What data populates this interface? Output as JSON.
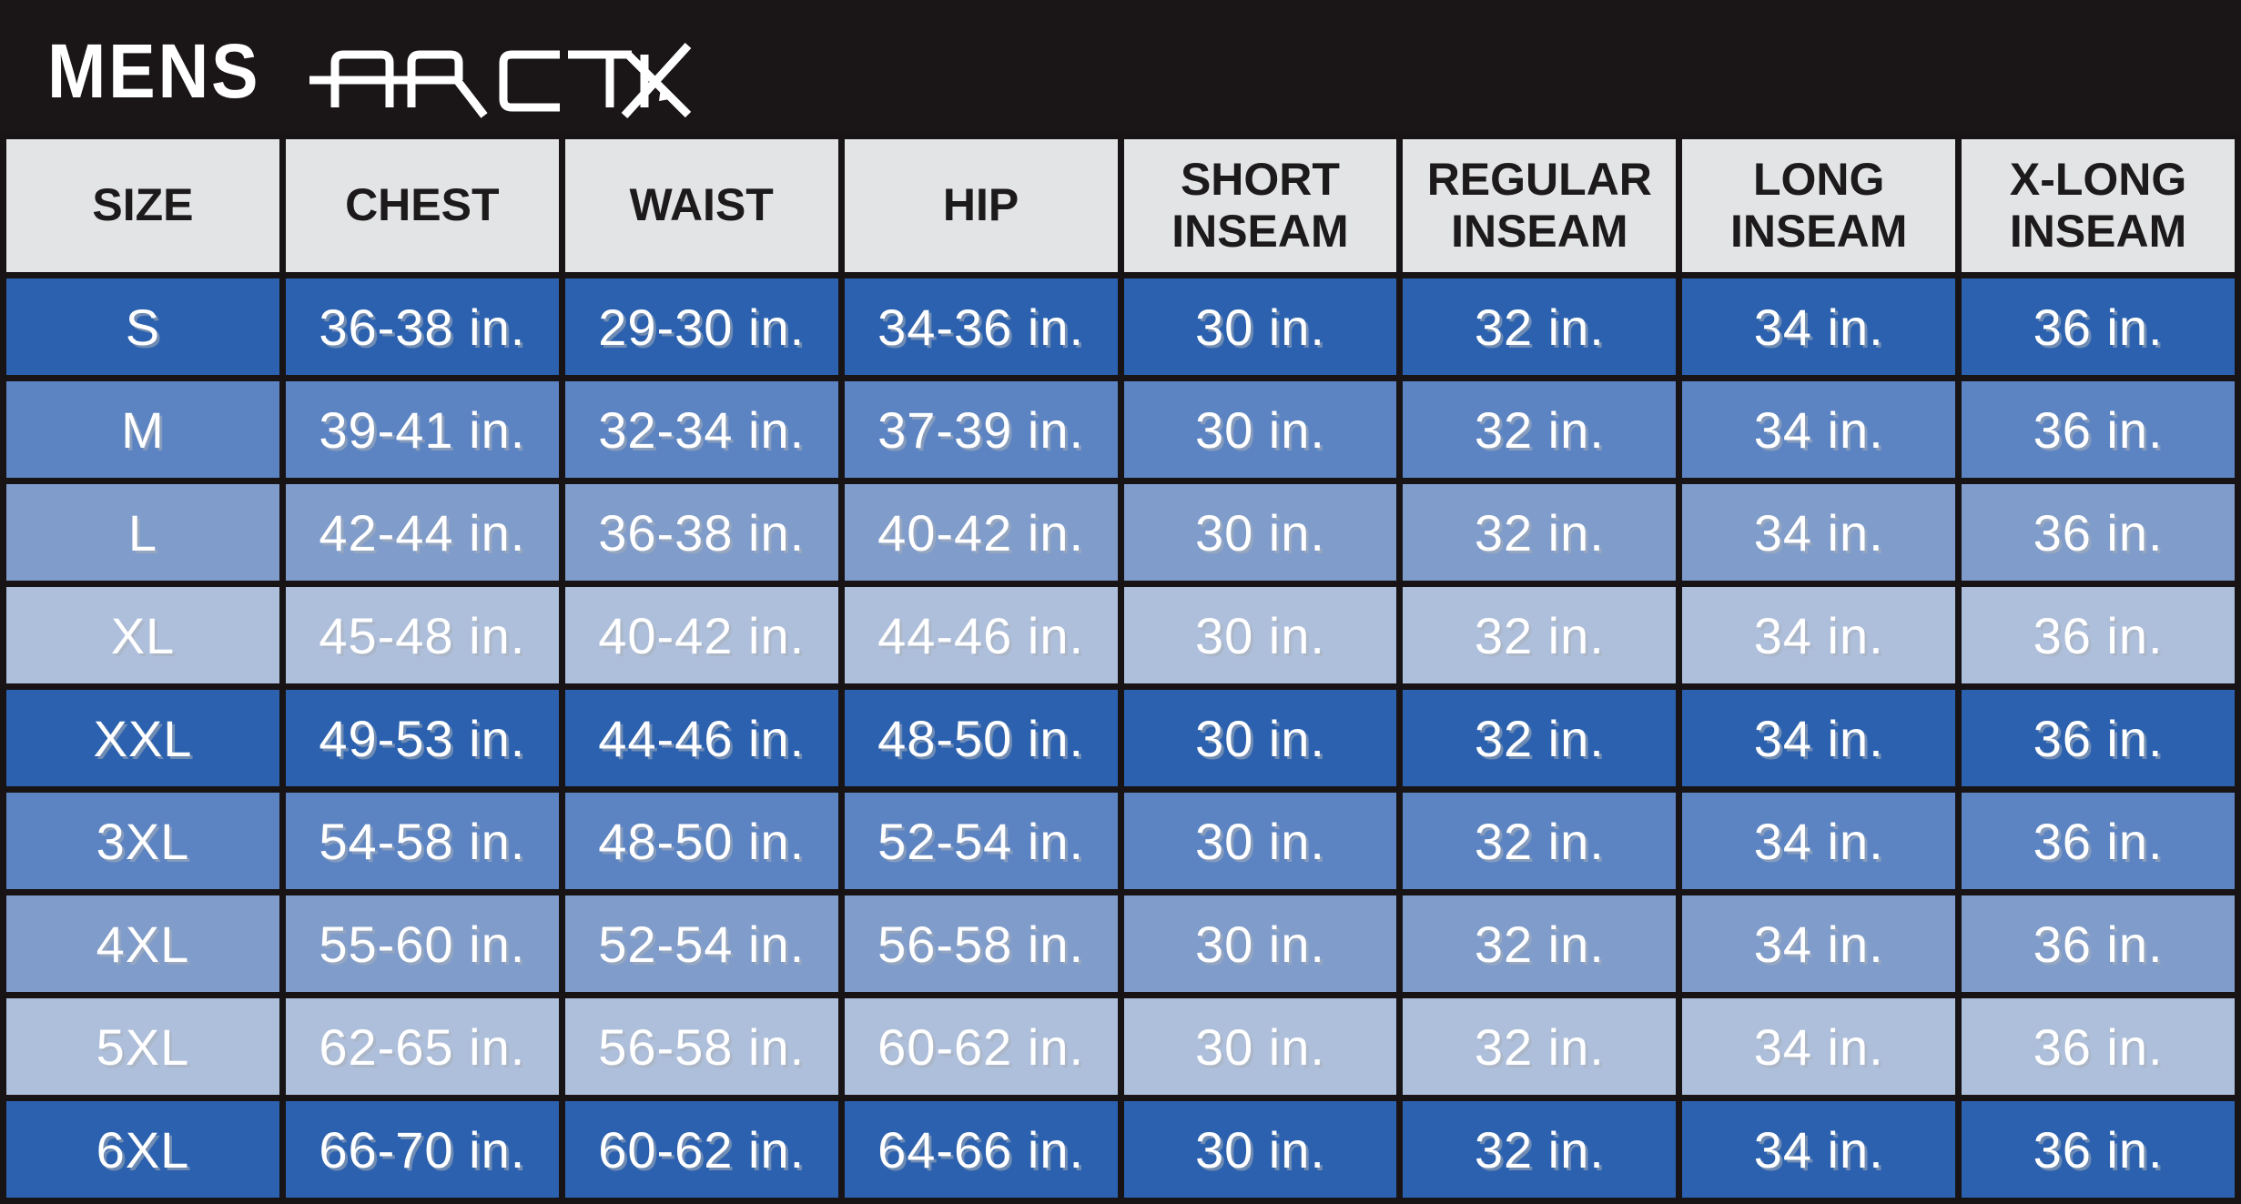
{
  "banner": {
    "prefix": "MENS",
    "brand": "ARCTIX"
  },
  "colors": {
    "banner_bg": "#1a1516",
    "header_bg": "#e3e4e6",
    "header_text": "#1c1a1b",
    "grid": "#181415",
    "row_dark": "#2b61ae",
    "row_medium": "#5c84c2",
    "row_light": "#7f9ccb",
    "row_lightest": "#aebfdc",
    "cell_text": "#ffffff"
  },
  "table": {
    "columns": [
      "SIZE",
      "CHEST",
      "WAIST",
      "HIP",
      "SHORT INSEAM",
      "REGULAR INSEAM",
      "LONG INSEAM",
      "X-LONG INSEAM"
    ],
    "rows": [
      {
        "shade": "dark",
        "cells": [
          "S",
          "36-38 in.",
          "29-30 in.",
          "34-36 in.",
          "30 in.",
          "32 in.",
          "34 in.",
          "36 in."
        ]
      },
      {
        "shade": "medium",
        "cells": [
          "M",
          "39-41 in.",
          "32-34 in.",
          "37-39 in.",
          "30 in.",
          "32 in.",
          "34 in.",
          "36 in."
        ]
      },
      {
        "shade": "light",
        "cells": [
          "L",
          "42-44 in.",
          "36-38 in.",
          "40-42 in.",
          "30 in.",
          "32 in.",
          "34 in.",
          "36 in."
        ]
      },
      {
        "shade": "lightest",
        "cells": [
          "XL",
          "45-48 in.",
          "40-42 in.",
          "44-46 in.",
          "30 in.",
          "32 in.",
          "34 in.",
          "36 in."
        ]
      },
      {
        "shade": "dark",
        "cells": [
          "XXL",
          "49-53 in.",
          "44-46 in.",
          "48-50 in.",
          "30 in.",
          "32 in.",
          "34 in.",
          "36 in."
        ]
      },
      {
        "shade": "medium",
        "cells": [
          "3XL",
          "54-58 in.",
          "48-50 in.",
          "52-54 in.",
          "30 in.",
          "32 in.",
          "34 in.",
          "36 in."
        ]
      },
      {
        "shade": "light",
        "cells": [
          "4XL",
          "55-60 in.",
          "52-54 in.",
          "56-58 in.",
          "30 in.",
          "32 in.",
          "34 in.",
          "36 in."
        ]
      },
      {
        "shade": "lightest",
        "cells": [
          "5XL",
          "62-65 in.",
          "56-58 in.",
          "60-62 in.",
          "30 in.",
          "32 in.",
          "34 in.",
          "36 in."
        ]
      },
      {
        "shade": "dark",
        "cells": [
          "6XL",
          "66-70 in.",
          "60-62 in.",
          "64-66 in.",
          "30 in.",
          "32 in.",
          "34 in.",
          "36 in."
        ]
      }
    ]
  },
  "chart_data": {
    "type": "table",
    "title": "MENS ARCTIX size chart",
    "columns": [
      "SIZE",
      "CHEST",
      "WAIST",
      "HIP",
      "SHORT INSEAM",
      "REGULAR INSEAM",
      "LONG INSEAM",
      "X-LONG INSEAM"
    ],
    "rows": [
      [
        "S",
        "36-38 in.",
        "29-30 in.",
        "34-36 in.",
        "30 in.",
        "32 in.",
        "34 in.",
        "36 in."
      ],
      [
        "M",
        "39-41 in.",
        "32-34 in.",
        "37-39 in.",
        "30 in.",
        "32 in.",
        "34 in.",
        "36 in."
      ],
      [
        "L",
        "42-44 in.",
        "36-38 in.",
        "40-42 in.",
        "30 in.",
        "32 in.",
        "34 in.",
        "36 in."
      ],
      [
        "XL",
        "45-48 in.",
        "40-42 in.",
        "44-46 in.",
        "30 in.",
        "32 in.",
        "34 in.",
        "36 in."
      ],
      [
        "XXL",
        "49-53 in.",
        "44-46 in.",
        "48-50 in.",
        "30 in.",
        "32 in.",
        "34 in.",
        "36 in."
      ],
      [
        "3XL",
        "54-58 in.",
        "48-50 in.",
        "52-54 in.",
        "30 in.",
        "32 in.",
        "34 in.",
        "36 in."
      ],
      [
        "4XL",
        "55-60 in.",
        "52-54 in.",
        "56-58 in.",
        "30 in.",
        "32 in.",
        "34 in.",
        "36 in."
      ],
      [
        "5XL",
        "62-65 in.",
        "56-58 in.",
        "60-62 in.",
        "30 in.",
        "32 in.",
        "34 in.",
        "36 in."
      ],
      [
        "6XL",
        "66-70 in.",
        "60-62 in.",
        "64-66 in.",
        "30 in.",
        "32 in.",
        "34 in.",
        "36 in."
      ]
    ]
  }
}
